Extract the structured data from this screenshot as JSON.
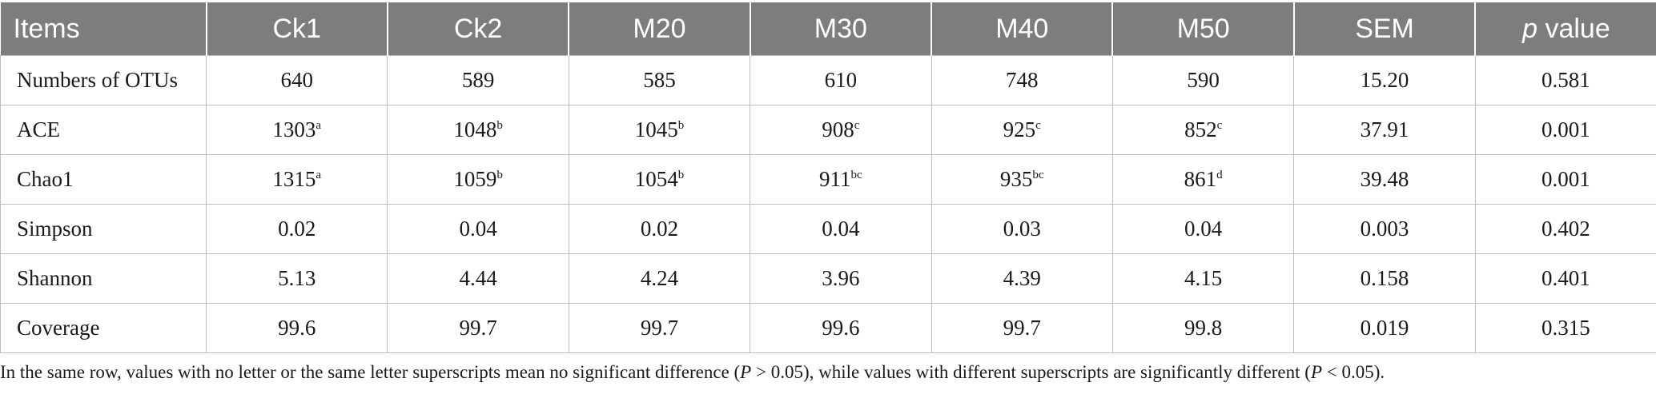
{
  "table": {
    "headers": [
      "Items",
      "Ck1",
      "Ck2",
      "M20",
      "M30",
      "M40",
      "M50",
      "SEM",
      "value"
    ],
    "p_value_header_italic": "p",
    "rows": [
      {
        "label": "Numbers of OTUs",
        "cells": [
          {
            "v": "640",
            "s": ""
          },
          {
            "v": "589",
            "s": ""
          },
          {
            "v": "585",
            "s": ""
          },
          {
            "v": "610",
            "s": ""
          },
          {
            "v": "748",
            "s": ""
          },
          {
            "v": "590",
            "s": ""
          },
          {
            "v": "15.20",
            "s": ""
          },
          {
            "v": "0.581",
            "s": ""
          }
        ]
      },
      {
        "label": "ACE",
        "cells": [
          {
            "v": "1303",
            "s": "a"
          },
          {
            "v": "1048",
            "s": "b"
          },
          {
            "v": "1045",
            "s": "b"
          },
          {
            "v": "908",
            "s": "c"
          },
          {
            "v": "925",
            "s": "c"
          },
          {
            "v": "852",
            "s": "c"
          },
          {
            "v": "37.91",
            "s": ""
          },
          {
            "v": "0.001",
            "s": ""
          }
        ]
      },
      {
        "label": "Chao1",
        "cells": [
          {
            "v": "1315",
            "s": "a"
          },
          {
            "v": "1059",
            "s": "b"
          },
          {
            "v": "1054",
            "s": "b"
          },
          {
            "v": "911",
            "s": "bc"
          },
          {
            "v": "935",
            "s": "bc"
          },
          {
            "v": "861",
            "s": "d"
          },
          {
            "v": "39.48",
            "s": ""
          },
          {
            "v": "0.001",
            "s": ""
          }
        ]
      },
      {
        "label": "Simpson",
        "cells": [
          {
            "v": "0.02",
            "s": ""
          },
          {
            "v": "0.04",
            "s": ""
          },
          {
            "v": "0.02",
            "s": ""
          },
          {
            "v": "0.04",
            "s": ""
          },
          {
            "v": "0.03",
            "s": ""
          },
          {
            "v": "0.04",
            "s": ""
          },
          {
            "v": "0.003",
            "s": ""
          },
          {
            "v": "0.402",
            "s": ""
          }
        ]
      },
      {
        "label": "Shannon",
        "cells": [
          {
            "v": "5.13",
            "s": ""
          },
          {
            "v": "4.44",
            "s": ""
          },
          {
            "v": "4.24",
            "s": ""
          },
          {
            "v": "3.96",
            "s": ""
          },
          {
            "v": "4.39",
            "s": ""
          },
          {
            "v": "4.15",
            "s": ""
          },
          {
            "v": "0.158",
            "s": ""
          },
          {
            "v": "0.401",
            "s": ""
          }
        ]
      },
      {
        "label": "Coverage",
        "cells": [
          {
            "v": "99.6",
            "s": ""
          },
          {
            "v": "99.7",
            "s": ""
          },
          {
            "v": "99.7",
            "s": ""
          },
          {
            "v": "99.6",
            "s": ""
          },
          {
            "v": "99.7",
            "s": ""
          },
          {
            "v": "99.8",
            "s": ""
          },
          {
            "v": "0.019",
            "s": ""
          },
          {
            "v": "0.315",
            "s": ""
          }
        ]
      }
    ]
  },
  "footnote": {
    "part1": "In the same row, values with no letter or the same letter superscripts mean no significant difference (",
    "p1": "P",
    "part2": " > 0.05), while values with different superscripts are significantly different (",
    "p2": "P",
    "part3": " < 0.05)."
  },
  "colors": {
    "header_bg": "#7d7d7d",
    "header_text": "#ffffff",
    "grid": "#bdbdbd"
  }
}
